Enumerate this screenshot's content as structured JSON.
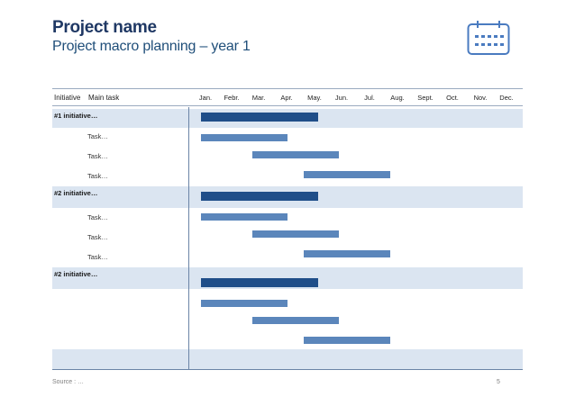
{
  "header": {
    "title": "Project name",
    "subtitle": "Project macro planning – year 1",
    "icon": "calendar-icon"
  },
  "table": {
    "col_initiative": "Initiative",
    "col_main_task": "Main task",
    "months": [
      "Jan.",
      "Febr.",
      "Mar.",
      "Apr.",
      "May.",
      "Jun.",
      "Jul.",
      "Aug.",
      "Sept.",
      "Oct.",
      "Nov.",
      "Dec."
    ],
    "initiatives": [
      {
        "label": "#1 initiative…",
        "tasks": [
          "Task…",
          "Task…",
          "Task…"
        ]
      },
      {
        "label": "#2 initiative…",
        "tasks": [
          "Task…",
          "Task…",
          "Task…"
        ]
      },
      {
        "label": "#2 initiative…",
        "tasks": [
          "",
          "",
          ""
        ]
      }
    ]
  },
  "colors": {
    "title": "#1f3864",
    "band": "#dbe5f1",
    "initiative_bar": "#1f4e89",
    "task_bar": "#5b86bb"
  },
  "footer": {
    "source": "Source : …",
    "page_number": "5"
  }
}
